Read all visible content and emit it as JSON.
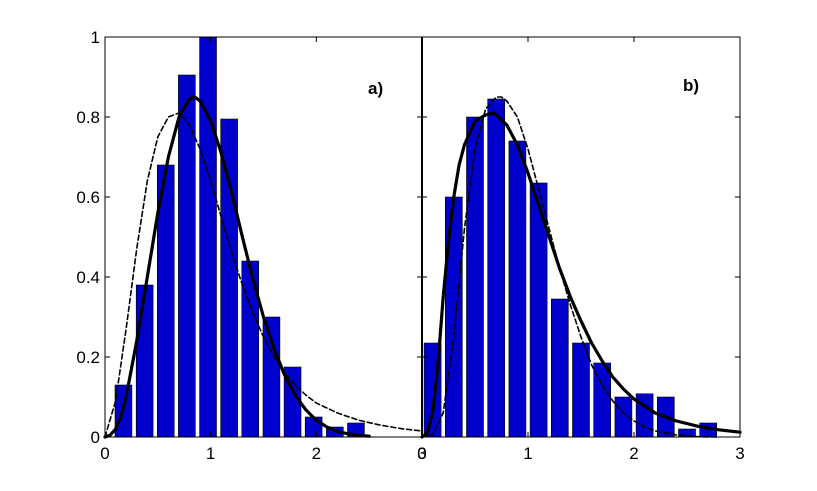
{
  "chart_data": [
    {
      "type": "bar",
      "panel_label": "a)",
      "xlim": [
        0,
        3
      ],
      "ylim": [
        0,
        1
      ],
      "xticks": [
        0,
        1,
        2,
        3
      ],
      "yticks": [
        0,
        0.2,
        0.4,
        0.6,
        0.8,
        1
      ],
      "grid": false,
      "bar_width": 0.16,
      "bar_color": "#0000cc",
      "bins": [
        {
          "x": 0.175,
          "y": 0.13
        },
        {
          "x": 0.375,
          "y": 0.38
        },
        {
          "x": 0.575,
          "y": 0.68
        },
        {
          "x": 0.775,
          "y": 0.905
        },
        {
          "x": 0.975,
          "y": 1.0
        },
        {
          "x": 1.175,
          "y": 0.795
        },
        {
          "x": 1.375,
          "y": 0.44
        },
        {
          "x": 1.575,
          "y": 0.3
        },
        {
          "x": 1.775,
          "y": 0.175
        },
        {
          "x": 1.975,
          "y": 0.05
        },
        {
          "x": 2.175,
          "y": 0.025
        },
        {
          "x": 2.375,
          "y": 0.035
        }
      ],
      "curves": [
        {
          "style": "solid",
          "peak_x": 0.85,
          "peak_y": 0.85,
          "x": [
            0.0,
            0.05,
            0.1,
            0.15,
            0.2,
            0.3,
            0.4,
            0.5,
            0.6,
            0.7,
            0.8,
            0.85,
            0.9,
            1.0,
            1.1,
            1.2,
            1.3,
            1.4,
            1.5,
            1.6,
            1.7,
            1.8,
            1.9,
            2.0,
            2.1,
            2.2,
            2.3,
            2.4,
            2.5
          ],
          "y": [
            0.0,
            0.005,
            0.02,
            0.05,
            0.1,
            0.24,
            0.4,
            0.56,
            0.7,
            0.8,
            0.845,
            0.85,
            0.84,
            0.79,
            0.71,
            0.61,
            0.5,
            0.395,
            0.3,
            0.22,
            0.155,
            0.105,
            0.068,
            0.042,
            0.025,
            0.014,
            0.008,
            0.004,
            0.002
          ]
        },
        {
          "style": "dashed",
          "peak_x": 0.7,
          "peak_y": 0.81,
          "x": [
            0.0,
            0.1,
            0.2,
            0.3,
            0.4,
            0.5,
            0.6,
            0.7,
            0.8,
            0.9,
            1.0,
            1.1,
            1.2,
            1.3,
            1.4,
            1.5,
            1.6,
            1.7,
            1.8,
            1.9,
            2.0,
            2.2,
            2.4,
            2.6,
            2.8,
            3.0
          ],
          "y": [
            0.0,
            0.09,
            0.27,
            0.47,
            0.64,
            0.75,
            0.8,
            0.81,
            0.78,
            0.72,
            0.64,
            0.55,
            0.46,
            0.38,
            0.31,
            0.25,
            0.2,
            0.16,
            0.13,
            0.105,
            0.085,
            0.06,
            0.042,
            0.03,
            0.021,
            0.015
          ]
        }
      ]
    },
    {
      "type": "bar",
      "panel_label": "b)",
      "xlim": [
        0,
        3
      ],
      "ylim": [
        0,
        1
      ],
      "xticks": [
        0,
        1,
        2,
        3
      ],
      "yticks": [
        0,
        0.2,
        0.4,
        0.6,
        0.8,
        1
      ],
      "grid": false,
      "bar_width": 0.16,
      "bar_color": "#0000cc",
      "bins": [
        {
          "x": 0.1,
          "y": 0.235
        },
        {
          "x": 0.3,
          "y": 0.6
        },
        {
          "x": 0.5,
          "y": 0.8
        },
        {
          "x": 0.7,
          "y": 0.845
        },
        {
          "x": 0.9,
          "y": 0.74
        },
        {
          "x": 1.1,
          "y": 0.635
        },
        {
          "x": 1.3,
          "y": 0.345
        },
        {
          "x": 1.5,
          "y": 0.235
        },
        {
          "x": 1.7,
          "y": 0.185
        },
        {
          "x": 1.9,
          "y": 0.1
        },
        {
          "x": 2.1,
          "y": 0.108
        },
        {
          "x": 2.3,
          "y": 0.1
        },
        {
          "x": 2.5,
          "y": 0.02
        },
        {
          "x": 2.7,
          "y": 0.035
        }
      ],
      "curves": [
        {
          "style": "solid",
          "peak_x": 0.68,
          "peak_y": 0.81,
          "x": [
            0.0,
            0.05,
            0.1,
            0.15,
            0.2,
            0.25,
            0.3,
            0.35,
            0.4,
            0.5,
            0.6,
            0.68,
            0.8,
            0.9,
            1.0,
            1.1,
            1.2,
            1.3,
            1.4,
            1.5,
            1.6,
            1.7,
            1.8,
            1.9,
            2.0,
            2.2,
            2.4,
            2.6,
            2.8,
            3.0
          ],
          "y": [
            0.0,
            0.01,
            0.06,
            0.18,
            0.35,
            0.49,
            0.6,
            0.68,
            0.73,
            0.79,
            0.805,
            0.81,
            0.78,
            0.73,
            0.66,
            0.58,
            0.5,
            0.42,
            0.35,
            0.29,
            0.235,
            0.19,
            0.15,
            0.12,
            0.095,
            0.06,
            0.04,
            0.027,
            0.018,
            0.012
          ]
        },
        {
          "style": "dashed",
          "peak_x": 0.72,
          "peak_y": 0.85,
          "x": [
            0.0,
            0.1,
            0.2,
            0.3,
            0.4,
            0.5,
            0.6,
            0.7,
            0.75,
            0.8,
            0.9,
            1.0,
            1.1,
            1.2,
            1.3,
            1.4,
            1.5,
            1.6,
            1.7,
            1.8,
            1.9,
            2.0,
            2.1,
            2.2,
            2.4,
            2.6,
            2.7,
            2.8
          ],
          "y": [
            0.0,
            0.005,
            0.06,
            0.25,
            0.52,
            0.72,
            0.82,
            0.85,
            0.85,
            0.84,
            0.8,
            0.72,
            0.62,
            0.52,
            0.42,
            0.33,
            0.25,
            0.18,
            0.13,
            0.09,
            0.06,
            0.04,
            0.025,
            0.015,
            0.005,
            0.001,
            0.0,
            0.0
          ]
        }
      ]
    }
  ]
}
